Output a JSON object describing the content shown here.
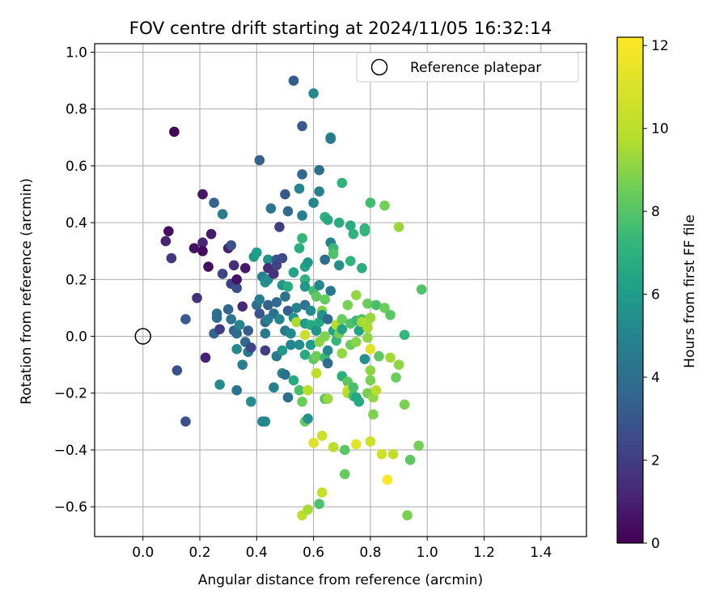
{
  "chart_data": {
    "type": "scatter",
    "title": "FOV centre drift starting at 2024/11/05 16:32:14",
    "xlabel": "Angular distance from reference (arcmin)",
    "ylabel": "Rotation from reference (arcmin)",
    "xlim": [
      -0.17,
      1.56
    ],
    "ylim": [
      -0.705,
      1.03
    ],
    "xticks": [
      0.0,
      0.2,
      0.4,
      0.6,
      0.8,
      1.0,
      1.2,
      1.4
    ],
    "yticks": [
      -0.6,
      -0.4,
      -0.2,
      0.0,
      0.2,
      0.4,
      0.6,
      0.8,
      1.0
    ],
    "grid": true,
    "legend": {
      "location": "upper right",
      "entries": [
        "Reference platepar"
      ]
    },
    "reference_point": {
      "label": "Reference platepar",
      "x": 0.0,
      "y": 0.0
    },
    "colorbar": {
      "label": "Hours from first FF file",
      "colormap": "viridis",
      "range": [
        0,
        12.2
      ],
      "ticks": [
        0,
        2,
        4,
        6,
        8,
        10,
        12
      ]
    },
    "point_columns": [
      "x",
      "y",
      "hours"
    ],
    "points": [
      [
        0.11,
        0.72,
        0.1
      ],
      [
        0.08,
        0.335,
        1.2
      ],
      [
        0.09,
        0.37,
        0.5
      ],
      [
        0.1,
        0.275,
        2.0
      ],
      [
        0.12,
        -0.12,
        3.0
      ],
      [
        0.15,
        0.06,
        3.4
      ],
      [
        0.15,
        -0.3,
        3.1
      ],
      [
        0.18,
        0.31,
        0.6
      ],
      [
        0.19,
        0.135,
        1.7
      ],
      [
        0.21,
        0.5,
        0.7
      ],
      [
        0.21,
        0.33,
        1.3
      ],
      [
        0.21,
        0.3,
        0.3
      ],
      [
        0.22,
        -0.075,
        1.1
      ],
      [
        0.23,
        0.245,
        0.4
      ],
      [
        0.24,
        0.36,
        0.9
      ],
      [
        0.25,
        0.47,
        3.9
      ],
      [
        0.25,
        0.01,
        4.0
      ],
      [
        0.26,
        0.08,
        4.6
      ],
      [
        0.26,
        0.065,
        4.4
      ],
      [
        0.27,
        0.025,
        2.2
      ],
      [
        0.27,
        -0.17,
        5.8
      ],
      [
        0.28,
        0.43,
        5.1
      ],
      [
        0.28,
        0.22,
        2.6
      ],
      [
        0.3,
        0.31,
        1.1
      ],
      [
        0.3,
        0.095,
        4.0
      ],
      [
        0.31,
        0.32,
        3.1
      ],
      [
        0.31,
        0.06,
        4.6
      ],
      [
        0.31,
        0.185,
        2.4
      ],
      [
        0.32,
        0.25,
        1.6
      ],
      [
        0.32,
        0.02,
        3.9
      ],
      [
        0.33,
        0.01,
        4.2
      ],
      [
        0.33,
        0.17,
        3.0
      ],
      [
        0.33,
        0.2,
        0.6
      ],
      [
        0.33,
        -0.045,
        5.7
      ],
      [
        0.33,
        -0.19,
        4.8
      ],
      [
        0.34,
        0.04,
        5.5
      ],
      [
        0.35,
        0.105,
        1.4
      ],
      [
        0.35,
        -0.1,
        5.2
      ],
      [
        0.36,
        0.24,
        0.8
      ],
      [
        0.36,
        -0.02,
        4.1
      ],
      [
        0.37,
        0.02,
        3.6
      ],
      [
        0.37,
        -0.055,
        4.9
      ],
      [
        0.38,
        -0.23,
        6.0
      ],
      [
        0.38,
        -0.04,
        2.6
      ],
      [
        0.39,
        0.28,
        6.5
      ],
      [
        0.4,
        0.295,
        6.8
      ],
      [
        0.4,
        0.11,
        4.5
      ],
      [
        0.41,
        0.62,
        3.7
      ],
      [
        0.41,
        0.08,
        3.3
      ],
      [
        0.41,
        0.13,
        5.1
      ],
      [
        0.42,
        -0.3,
        5.8
      ],
      [
        0.42,
        0.21,
        5.4
      ],
      [
        0.43,
        -0.3,
        5.6
      ],
      [
        0.43,
        0.19,
        6.1
      ],
      [
        0.43,
        0.05,
        4.3
      ],
      [
        0.43,
        0.01,
        5.0
      ],
      [
        0.43,
        -0.05,
        2.2
      ],
      [
        0.44,
        0.27,
        6.2
      ],
      [
        0.44,
        0.24,
        1.5
      ],
      [
        0.44,
        0.2,
        5.9
      ],
      [
        0.44,
        0.11,
        3.8
      ],
      [
        0.44,
        0.06,
        5.2
      ],
      [
        0.45,
        0.45,
        4.8
      ],
      [
        0.46,
        0.22,
        1.8
      ],
      [
        0.46,
        0.08,
        4.5
      ],
      [
        0.46,
        -0.18,
        5.3
      ],
      [
        0.47,
        -0.07,
        5.0
      ],
      [
        0.47,
        0.12,
        4.3
      ],
      [
        0.47,
        0.27,
        3.2
      ],
      [
        0.47,
        0.25,
        2.5
      ],
      [
        0.48,
        0.385,
        2.3
      ],
      [
        0.48,
        0.06,
        5.5
      ],
      [
        0.49,
        0.275,
        2.8
      ],
      [
        0.49,
        0.18,
        6.4
      ],
      [
        0.49,
        -0.13,
        5.6
      ],
      [
        0.49,
        -0.05,
        6.5
      ],
      [
        0.5,
        0.5,
        3.4
      ],
      [
        0.5,
        0.14,
        4.7
      ],
      [
        0.5,
        0.02,
        5.0
      ],
      [
        0.5,
        -0.135,
        4.5
      ],
      [
        0.51,
        0.09,
        3.8
      ],
      [
        0.51,
        0.175,
        7.6
      ],
      [
        0.51,
        0.44,
        4.2
      ],
      [
        0.51,
        -0.215,
        4.3
      ],
      [
        0.52,
        -0.03,
        5.6
      ],
      [
        0.52,
        0.01,
        5.8
      ],
      [
        0.53,
        0.9,
        3.6
      ],
      [
        0.53,
        0.225,
        7.1
      ],
      [
        0.53,
        0.065,
        6.3
      ],
      [
        0.53,
        -0.155,
        7.4
      ],
      [
        0.54,
        0.1,
        5.3
      ],
      [
        0.54,
        0.05,
        10.7
      ],
      [
        0.55,
        -0.03,
        6.0
      ],
      [
        0.55,
        -0.19,
        8.6
      ],
      [
        0.55,
        0.52,
        5.5
      ],
      [
        0.55,
        0.31,
        7.5
      ],
      [
        0.56,
        0.74,
        3.5
      ],
      [
        0.56,
        0.57,
        4.1
      ],
      [
        0.56,
        0.425,
        5.2
      ],
      [
        0.56,
        0.345,
        8.1
      ],
      [
        0.56,
        -0.23,
        9.4
      ],
      [
        0.56,
        -0.63,
        11.0
      ],
      [
        0.57,
        0.245,
        7.0
      ],
      [
        0.57,
        0.2,
        7.8
      ],
      [
        0.57,
        0.175,
        6.4
      ],
      [
        0.57,
        0.11,
        4.6
      ],
      [
        0.57,
        0.045,
        6.8
      ],
      [
        0.57,
        0.005,
        11.2
      ],
      [
        0.57,
        -0.065,
        7.4
      ],
      [
        0.57,
        -0.3,
        9.3
      ],
      [
        0.58,
        0.26,
        6.5
      ],
      [
        0.58,
        -0.29,
        6.2
      ],
      [
        0.58,
        -0.19,
        10.9
      ],
      [
        0.58,
        -0.61,
        10.6
      ],
      [
        0.59,
        0.09,
        5.9
      ],
      [
        0.59,
        0.04,
        7.3
      ],
      [
        0.59,
        -0.03,
        6.7
      ],
      [
        0.6,
        0.855,
        5.7
      ],
      [
        0.6,
        0.47,
        5.6
      ],
      [
        0.6,
        0.16,
        8.5
      ],
      [
        0.6,
        -0.08,
        9.1
      ],
      [
        0.6,
        -0.375,
        11.6
      ],
      [
        0.61,
        0.14,
        9.1
      ],
      [
        0.61,
        0.02,
        6.4
      ],
      [
        0.61,
        -0.07,
        9.5
      ],
      [
        0.61,
        -0.13,
        11.0
      ],
      [
        0.62,
        0.585,
        4.5
      ],
      [
        0.62,
        0.51,
        5.3
      ],
      [
        0.62,
        0.18,
        5.6
      ],
      [
        0.62,
        0.05,
        7.3
      ],
      [
        0.62,
        -0.02,
        10.0
      ],
      [
        0.62,
        -0.59,
        8.7
      ],
      [
        0.63,
        0.09,
        9.9
      ],
      [
        0.63,
        0.075,
        6.2
      ],
      [
        0.63,
        -0.35,
        11.3
      ],
      [
        0.63,
        -0.55,
        11.2
      ],
      [
        0.64,
        0.42,
        7.8
      ],
      [
        0.64,
        0.27,
        4.3
      ],
      [
        0.64,
        0.13,
        9.3
      ],
      [
        0.64,
        0.0,
        9.8
      ],
      [
        0.64,
        -0.075,
        8.3
      ],
      [
        0.64,
        -0.22,
        8.7
      ],
      [
        0.65,
        0.41,
        7.3
      ],
      [
        0.65,
        0.06,
        4.3
      ],
      [
        0.65,
        -0.05,
        5.8
      ],
      [
        0.65,
        -0.095,
        4.2
      ],
      [
        0.65,
        -0.22,
        10.3
      ],
      [
        0.66,
        0.7,
        6.6
      ],
      [
        0.66,
        0.695,
        5.0
      ],
      [
        0.66,
        0.33,
        5.4
      ],
      [
        0.66,
        0.16,
        4.9
      ],
      [
        0.67,
        0.31,
        8.2
      ],
      [
        0.67,
        0.29,
        8.8
      ],
      [
        0.67,
        0.02,
        7.0
      ],
      [
        0.67,
        -0.39,
        10.9
      ],
      [
        0.68,
        0.04,
        10.9
      ],
      [
        0.68,
        -0.015,
        8.1
      ],
      [
        0.69,
        0.4,
        7.5
      ],
      [
        0.69,
        0.25,
        6.1
      ],
      [
        0.69,
        0.01,
        9.6
      ],
      [
        0.7,
        0.54,
        7.8
      ],
      [
        0.7,
        0.06,
        9.4
      ],
      [
        0.7,
        0.025,
        7.1
      ],
      [
        0.7,
        -0.06,
        10.2
      ],
      [
        0.7,
        -0.14,
        7.7
      ],
      [
        0.71,
        -0.4,
        9.0
      ],
      [
        0.71,
        -0.485,
        9.3
      ],
      [
        0.72,
        0.11,
        9.7
      ],
      [
        0.72,
        -0.16,
        9.1
      ],
      [
        0.72,
        -0.19,
        11.4
      ],
      [
        0.72,
        -0.2,
        10.9
      ],
      [
        0.73,
        0.39,
        7.5
      ],
      [
        0.73,
        0.265,
        7.9
      ],
      [
        0.73,
        0.045,
        8.8
      ],
      [
        0.73,
        -0.03,
        9.4
      ],
      [
        0.74,
        0.36,
        7.8
      ],
      [
        0.74,
        -0.18,
        8.6
      ],
      [
        0.74,
        -0.21,
        8.5
      ],
      [
        0.75,
        0.145,
        10.2
      ],
      [
        0.75,
        0.055,
        8.3
      ],
      [
        0.75,
        -0.02,
        10.0
      ],
      [
        0.75,
        -0.215,
        7.2
      ],
      [
        0.75,
        -0.38,
        11.7
      ],
      [
        0.76,
        0.02,
        7.1
      ],
      [
        0.76,
        -0.23,
        7.4
      ],
      [
        0.77,
        0.06,
        8.8
      ],
      [
        0.77,
        0.05,
        10.5
      ],
      [
        0.77,
        0.24,
        7.6
      ],
      [
        0.78,
        0.38,
        8.0
      ],
      [
        0.78,
        0.37,
        8.0
      ],
      [
        0.78,
        -0.08,
        6.2
      ],
      [
        0.79,
        0.115,
        9.4
      ],
      [
        0.79,
        0.05,
        10.8
      ],
      [
        0.79,
        0.03,
        10.6
      ],
      [
        0.79,
        -0.005,
        10.1
      ],
      [
        0.79,
        -0.2,
        9.6
      ],
      [
        0.8,
        0.47,
        8.4
      ],
      [
        0.8,
        0.065,
        10.3
      ],
      [
        0.8,
        -0.045,
        11.6
      ],
      [
        0.8,
        -0.12,
        10.1
      ],
      [
        0.8,
        -0.155,
        9.7
      ],
      [
        0.8,
        -0.37,
        11.3
      ],
      [
        0.81,
        -0.215,
        10.1
      ],
      [
        0.81,
        -0.275,
        9.8
      ],
      [
        0.82,
        0.11,
        8.6
      ],
      [
        0.82,
        -0.19,
        10.9
      ],
      [
        0.83,
        -0.07,
        9.1
      ],
      [
        0.84,
        -0.415,
        11.3
      ],
      [
        0.85,
        0.1,
        9.4
      ],
      [
        0.85,
        0.46,
        9.6
      ],
      [
        0.86,
        -0.505,
        12.2
      ],
      [
        0.87,
        0.075,
        9.0
      ],
      [
        0.87,
        -0.075,
        10.5
      ],
      [
        0.88,
        -0.415,
        11.0
      ],
      [
        0.89,
        -0.145,
        9.4
      ],
      [
        0.9,
        0.385,
        10.3
      ],
      [
        0.9,
        -0.1,
        10.1
      ],
      [
        0.92,
        0.005,
        8.1
      ],
      [
        0.92,
        -0.24,
        9.7
      ],
      [
        0.93,
        -0.63,
        9.7
      ],
      [
        0.94,
        -0.435,
        9.1
      ],
      [
        0.97,
        -0.385,
        9.6
      ],
      [
        0.98,
        0.165,
        8.8
      ]
    ]
  }
}
